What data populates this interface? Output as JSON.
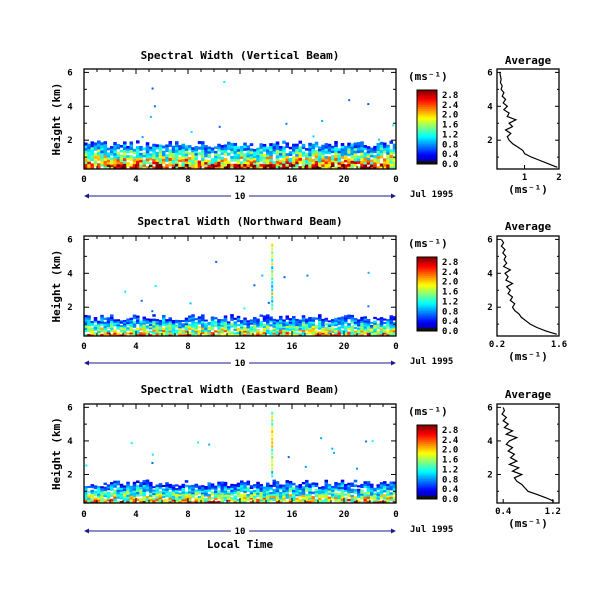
{
  "footer": {
    "x_label": "Local Time"
  },
  "chart_data": [
    {
      "type": "heatmap",
      "title": "Spectral Width (Vertical Beam)",
      "ylabel": "Height (km)",
      "xlabel": "",
      "x_ticks": [
        "0",
        "4",
        "8",
        "12",
        "16",
        "20",
        "0"
      ],
      "y_ticks": [
        "2",
        "4",
        "6"
      ],
      "xlim": [
        0,
        24
      ],
      "ylim": [
        0.3,
        6.2
      ],
      "date_day": "10",
      "date_label": "Jul 1995",
      "colorbar": {
        "label": "(ms⁻¹)",
        "ticks": [
          "0.0",
          "0.4",
          "0.8",
          "1.2",
          "1.6",
          "2.0",
          "2.4",
          "2.8"
        ],
        "range": [
          0,
          3.0
        ]
      },
      "echo_layer": {
        "bottom_km": 0.3,
        "top_km_range": [
          1.6,
          2.0
        ],
        "typical_width_ms": [
          0.4,
          2.4
        ]
      },
      "profile": {
        "title": "Average",
        "xlabel": "(ms⁻¹)",
        "x_ticks": [
          "1",
          "2"
        ],
        "y_ticks": [
          "2",
          "4",
          "6"
        ],
        "xlim": [
          0.2,
          2.0
        ],
        "ylim": [
          0.3,
          6.2
        ],
        "height_km": [
          0.4,
          0.6,
          0.8,
          1.0,
          1.2,
          1.4,
          1.6,
          1.8,
          2.0,
          2.2,
          2.4,
          2.6,
          2.8,
          3.0,
          3.2,
          3.4,
          3.6,
          3.8,
          4.0,
          4.2,
          4.4,
          4.6,
          4.8,
          5.0,
          5.2,
          5.4,
          5.6,
          5.8,
          6.0
        ],
        "width_ms": [
          1.95,
          1.7,
          1.45,
          1.2,
          1.0,
          0.95,
          0.8,
          0.65,
          0.55,
          0.5,
          0.6,
          0.45,
          0.65,
          0.55,
          0.75,
          0.5,
          0.55,
          0.4,
          0.5,
          0.38,
          0.45,
          0.35,
          0.4,
          0.32,
          0.35,
          0.3,
          0.32,
          0.3,
          0.28
        ]
      }
    },
    {
      "type": "heatmap",
      "title": "Spectral Width (Northward Beam)",
      "ylabel": "Height (km)",
      "xlabel": "",
      "x_ticks": [
        "0",
        "4",
        "8",
        "12",
        "16",
        "20",
        "0"
      ],
      "y_ticks": [
        "2",
        "4",
        "6"
      ],
      "xlim": [
        0,
        24
      ],
      "ylim": [
        0.3,
        6.2
      ],
      "date_day": "10",
      "date_label": "Jul 1995",
      "colorbar": {
        "label": "(ms⁻¹)",
        "ticks": [
          "0.0",
          "0.4",
          "0.8",
          "1.2",
          "1.6",
          "2.0",
          "2.4",
          "2.8"
        ],
        "range": [
          0,
          3.0
        ]
      },
      "echo_layer": {
        "bottom_km": 0.3,
        "top_km_range": [
          1.2,
          1.6
        ],
        "typical_width_ms": [
          0.3,
          2.0
        ]
      },
      "profile": {
        "title": "Average",
        "xlabel": "(ms⁻¹)",
        "x_ticks": [
          "0.2",
          "1.6"
        ],
        "y_ticks": [
          "2",
          "4",
          "6"
        ],
        "xlim": [
          0.2,
          1.6
        ],
        "ylim": [
          0.3,
          6.2
        ],
        "height_km": [
          0.4,
          0.6,
          0.8,
          1.0,
          1.2,
          1.4,
          1.6,
          1.8,
          2.0,
          2.2,
          2.4,
          2.6,
          2.8,
          3.0,
          3.2,
          3.4,
          3.6,
          3.8,
          4.0,
          4.2,
          4.4,
          4.6,
          4.8,
          5.0,
          5.2,
          5.4,
          5.6,
          5.8,
          6.0
        ],
        "width_ms": [
          1.55,
          1.3,
          1.1,
          0.95,
          0.85,
          0.75,
          0.7,
          0.6,
          0.55,
          0.6,
          0.5,
          0.55,
          0.45,
          0.5,
          0.42,
          0.55,
          0.4,
          0.45,
          0.38,
          0.5,
          0.35,
          0.42,
          0.36,
          0.4,
          0.33,
          0.38,
          0.3,
          0.35,
          0.3
        ]
      }
    },
    {
      "type": "heatmap",
      "title": "Spectral Width (Eastward Beam)",
      "ylabel": "Height (km)",
      "xlabel": "Local Time",
      "x_ticks": [
        "0",
        "4",
        "8",
        "12",
        "16",
        "20",
        "0"
      ],
      "y_ticks": [
        "2",
        "4",
        "6"
      ],
      "xlim": [
        0,
        24
      ],
      "ylim": [
        0.3,
        6.2
      ],
      "date_day": "10",
      "date_label": "Jul 1995",
      "colorbar": {
        "label": "(ms⁻¹)",
        "ticks": [
          "0.0",
          "0.4",
          "0.8",
          "1.2",
          "1.6",
          "2.0",
          "2.4",
          "2.8"
        ],
        "range": [
          0,
          3.0
        ]
      },
      "echo_layer": {
        "bottom_km": 0.3,
        "top_km_range": [
          1.3,
          1.7
        ],
        "typical_width_ms": [
          0.3,
          2.0
        ]
      },
      "profile": {
        "title": "Average",
        "xlabel": "(ms⁻¹)",
        "x_ticks": [
          "0.4",
          "1.2"
        ],
        "y_ticks": [
          "2",
          "4",
          "6"
        ],
        "xlim": [
          0.3,
          1.3
        ],
        "ylim": [
          0.3,
          6.2
        ],
        "height_km": [
          0.4,
          0.6,
          0.8,
          1.0,
          1.2,
          1.4,
          1.6,
          1.8,
          2.0,
          2.2,
          2.4,
          2.6,
          2.8,
          3.0,
          3.2,
          3.4,
          3.6,
          3.8,
          4.0,
          4.2,
          4.4,
          4.6,
          4.8,
          5.0,
          5.2,
          5.4,
          5.6,
          5.8,
          6.0
        ],
        "width_ms": [
          1.22,
          1.1,
          0.95,
          0.8,
          0.75,
          0.7,
          0.62,
          0.58,
          0.7,
          0.55,
          0.65,
          0.5,
          0.62,
          0.52,
          0.58,
          0.48,
          0.55,
          0.45,
          0.5,
          0.62,
          0.45,
          0.55,
          0.42,
          0.48,
          0.4,
          0.45,
          0.38,
          0.42,
          0.4
        ]
      }
    }
  ]
}
